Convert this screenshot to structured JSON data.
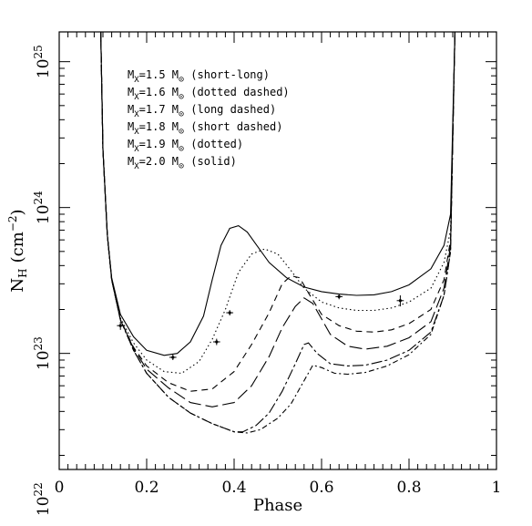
{
  "chart_data": {
    "type": "line",
    "xlabel": "Phase",
    "ylabel_main": "N",
    "ylabel_sub": "H",
    "ylabel_unit_open": "(cm",
    "ylabel_unit_exp": "−2",
    "ylabel_unit_close": ")",
    "xlim": [
      0,
      1
    ],
    "ylim": [
      1.6e+22,
      1.6e+25
    ],
    "y_scale": "log",
    "grid": false,
    "legend_position": "top-left",
    "x_ticks": [
      {
        "value": 0,
        "label": "0"
      },
      {
        "value": 0.2,
        "label": "0.2"
      },
      {
        "value": 0.4,
        "label": "0.4"
      },
      {
        "value": 0.6,
        "label": "0.6"
      },
      {
        "value": 0.8,
        "label": "0.8"
      },
      {
        "value": 1,
        "label": "1"
      }
    ],
    "y_ticks": [
      {
        "exp": 22,
        "base": "10",
        "sup": "22"
      },
      {
        "exp": 23,
        "base": "10",
        "sup": "23"
      },
      {
        "exp": 24,
        "base": "10",
        "sup": "24"
      },
      {
        "exp": 25,
        "base": "10",
        "sup": "25"
      }
    ],
    "legend": [
      {
        "prefix": "M",
        "sub": "X",
        "mid": "=1.5 M",
        "sun": "⊙",
        "style": " (short-long)"
      },
      {
        "prefix": "M",
        "sub": "X",
        "mid": "=1.6 M",
        "sun": "⊙",
        "style": " (dotted dashed)"
      },
      {
        "prefix": "M",
        "sub": "X",
        "mid": "=1.7 M",
        "sun": "⊙",
        "style": " (long dashed)"
      },
      {
        "prefix": "M",
        "sub": "X",
        "mid": "=1.8 M",
        "sun": "⊙",
        "style": " (short dashed)"
      },
      {
        "prefix": "M",
        "sub": "X",
        "mid": "=1.9 M",
        "sun": "⊙",
        "style": " (dotted)"
      },
      {
        "prefix": "M",
        "sub": "X",
        "mid": "=2.0 M",
        "sun": "⊙",
        "style": " (solid)"
      }
    ],
    "series": [
      {
        "mass": 1.5,
        "dash": "12,3,3,3",
        "x": [
          0.095,
          0.1,
          0.11,
          0.12,
          0.14,
          0.17,
          0.2,
          0.25,
          0.3,
          0.35,
          0.4,
          0.42,
          0.45,
          0.48,
          0.51,
          0.54,
          0.56,
          0.57,
          0.59,
          0.62,
          0.66,
          0.7,
          0.75,
          0.8,
          0.85,
          0.88,
          0.895,
          0.905
        ],
        "y": [
          1.6e+25,
          2.5e+24,
          6.5e+23,
          3.2e+23,
          1.7e+23,
          1.05e+23,
          7.3e+22,
          5e+22,
          3.9e+22,
          3.3e+22,
          2.9e+22,
          2.9e+22,
          3.2e+22,
          3.9e+22,
          5.5e+22,
          8.5e+22,
          1.15e+23,
          1.18e+23,
          1e+23,
          8.5e+22,
          8.2e+22,
          8.3e+22,
          9e+22,
          1.05e+23,
          1.4e+23,
          2.5e+23,
          5e+23,
          1.6e+25
        ]
      },
      {
        "mass": 1.6,
        "dash": "6,3,2,3",
        "x": [
          0.095,
          0.1,
          0.11,
          0.12,
          0.14,
          0.17,
          0.2,
          0.25,
          0.3,
          0.35,
          0.4,
          0.43,
          0.46,
          0.5,
          0.53,
          0.56,
          0.58,
          0.6,
          0.63,
          0.66,
          0.7,
          0.75,
          0.8,
          0.85,
          0.88,
          0.895,
          0.905
        ],
        "y": [
          1.6e+25,
          2.5e+24,
          6.5e+23,
          3.2e+23,
          1.7e+23,
          1.05e+23,
          7.3e+22,
          5e+22,
          3.9e+22,
          3.3e+22,
          2.9e+22,
          2.85e+22,
          3e+22,
          3.6e+22,
          4.5e+22,
          6.5e+22,
          8.3e+22,
          8e+22,
          7.3e+22,
          7.2e+22,
          7.4e+22,
          8.2e+22,
          9.8e+22,
          1.35e+23,
          2.5e+23,
          5e+23,
          1.6e+25
        ]
      },
      {
        "mass": 1.7,
        "dash": "14,5",
        "x": [
          0.095,
          0.1,
          0.11,
          0.12,
          0.14,
          0.17,
          0.2,
          0.25,
          0.3,
          0.35,
          0.4,
          0.44,
          0.48,
          0.51,
          0.54,
          0.56,
          0.58,
          0.62,
          0.66,
          0.7,
          0.75,
          0.8,
          0.85,
          0.88,
          0.895,
          0.905
        ],
        "y": [
          1.6e+25,
          2.5e+24,
          6.5e+23,
          3.2e+23,
          1.7e+23,
          1.08e+23,
          7.8e+22,
          5.8e+22,
          4.6e+22,
          4.3e+22,
          4.6e+22,
          6e+22,
          9.5e+22,
          1.5e+23,
          2.1e+23,
          2.4e+23,
          2.2e+23,
          1.35e+23,
          1.12e+23,
          1.07e+23,
          1.12e+23,
          1.28e+23,
          1.65e+23,
          2.8e+23,
          5.5e+23,
          1.6e+25
        ]
      },
      {
        "mass": 1.8,
        "dash": "7,5",
        "x": [
          0.095,
          0.1,
          0.11,
          0.12,
          0.14,
          0.17,
          0.2,
          0.25,
          0.3,
          0.35,
          0.4,
          0.44,
          0.48,
          0.51,
          0.53,
          0.55,
          0.57,
          0.6,
          0.64,
          0.68,
          0.72,
          0.76,
          0.8,
          0.85,
          0.88,
          0.895,
          0.905
        ],
        "y": [
          1.6e+25,
          2.5e+24,
          6.5e+23,
          3.2e+23,
          1.7e+23,
          1.1e+23,
          8.2e+22,
          6.3e+22,
          5.5e+22,
          5.7e+22,
          7.5e+22,
          1.15e+23,
          1.9e+23,
          3e+23,
          3.4e+23,
          3.3e+23,
          2.6e+23,
          1.85e+23,
          1.55e+23,
          1.42e+23,
          1.4e+23,
          1.45e+23,
          1.6e+23,
          2e+23,
          3.2e+23,
          6e+23,
          1.6e+25
        ]
      },
      {
        "mass": 1.9,
        "dash": "1.5,3",
        "x": [
          0.095,
          0.1,
          0.11,
          0.12,
          0.14,
          0.17,
          0.2,
          0.24,
          0.28,
          0.32,
          0.35,
          0.38,
          0.41,
          0.44,
          0.47,
          0.5,
          0.53,
          0.56,
          0.6,
          0.64,
          0.68,
          0.72,
          0.76,
          0.8,
          0.85,
          0.88,
          0.895,
          0.905
        ],
        "y": [
          1.6e+25,
          2.5e+24,
          6.5e+23,
          3.2e+23,
          1.75e+23,
          1.18e+23,
          9e+22,
          7.5e+22,
          7.3e+22,
          8.8e+22,
          1.25e+23,
          2e+23,
          3.6e+23,
          4.8e+23,
          5.2e+23,
          4.8e+23,
          3.7e+23,
          2.8e+23,
          2.25e+23,
          2.05e+23,
          1.97e+23,
          1.97e+23,
          2.05e+23,
          2.25e+23,
          2.8e+23,
          4.2e+23,
          7e+23,
          1.6e+25
        ]
      },
      {
        "mass": 2.0,
        "dash": "",
        "x": [
          0.095,
          0.1,
          0.11,
          0.12,
          0.14,
          0.17,
          0.2,
          0.24,
          0.27,
          0.3,
          0.33,
          0.35,
          0.37,
          0.39,
          0.41,
          0.43,
          0.45,
          0.48,
          0.52,
          0.56,
          0.6,
          0.64,
          0.68,
          0.72,
          0.76,
          0.8,
          0.85,
          0.88,
          0.895,
          0.905
        ],
        "y": [
          1.6e+25,
          2.5e+24,
          6.5e+23,
          3.3e+23,
          1.85e+23,
          1.3e+23,
          1.05e+23,
          9.7e+22,
          1e+23,
          1.2e+23,
          1.8e+23,
          3.2e+23,
          5.5e+23,
          7.2e+23,
          7.5e+23,
          6.8e+23,
          5.6e+23,
          4.2e+23,
          3.3e+23,
          2.85e+23,
          2.65e+23,
          2.55e+23,
          2.5e+23,
          2.52e+23,
          2.65e+23,
          2.95e+23,
          3.8e+23,
          5.5e+23,
          9e+23,
          1.6e+25
        ]
      }
    ],
    "observations": [
      {
        "x": 0.14,
        "y": 1.55e+23,
        "xerr": 0.008,
        "yerr": [
          1.45e+23,
          1.65e+23
        ]
      },
      {
        "x": 0.26,
        "y": 9.4e+22,
        "xerr": 0.008,
        "yerr": [
          9e+22,
          9.8e+22
        ]
      },
      {
        "x": 0.36,
        "y": 1.2e+23,
        "xerr": 0.008,
        "yerr": [
          1.14e+23,
          1.26e+23
        ]
      },
      {
        "x": 0.39,
        "y": 1.9e+23,
        "xerr": 0.008,
        "yerr": [
          1.82e+23,
          1.98e+23
        ]
      },
      {
        "x": 0.64,
        "y": 2.45e+23,
        "xerr": 0.008,
        "yerr": [
          2.35e+23,
          2.55e+23
        ]
      },
      {
        "x": 0.78,
        "y": 2.3e+23,
        "xerr": 0.008,
        "yerr": [
          2.1e+23,
          2.5e+23
        ]
      }
    ]
  }
}
